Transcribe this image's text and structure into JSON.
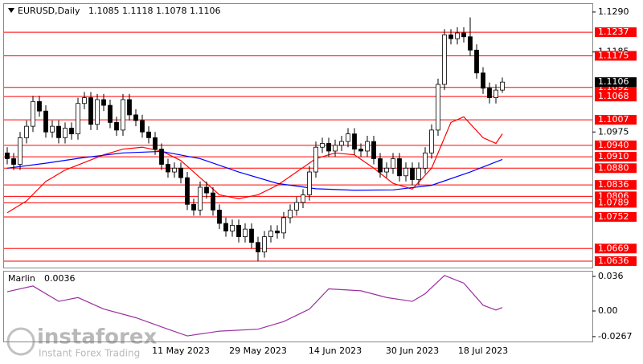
{
  "chart_data": [
    {
      "type": "candlestick",
      "title": "EURUSD,Daily",
      "categories": [
        null,
        null,
        null,
        null,
        null,
        null,
        null,
        null,
        null,
        null,
        null,
        null,
        null,
        null,
        null,
        null,
        null,
        null,
        null,
        null,
        null,
        null,
        null,
        null,
        null,
        null,
        null,
        "11 May 2023",
        null,
        null,
        null,
        null,
        null,
        null,
        null,
        null,
        null,
        null,
        null,
        "29 May 2023",
        null,
        null,
        null,
        null,
        null,
        null,
        null,
        null,
        null,
        null,
        null,
        "14 Jun 2023",
        null,
        null,
        null,
        null,
        null,
        null,
        null,
        null,
        null,
        null,
        null,
        "30 Jun 2023",
        null,
        null,
        null,
        null,
        null,
        null,
        null,
        null,
        null,
        null,
        "18 Jul 2023",
        null,
        null,
        null
      ],
      "open": [
        1.092,
        1.0905,
        1.089,
        1.096,
        1.099,
        1.1055,
        1.103,
        1.0975,
        1.099,
        1.096,
        1.0985,
        1.097,
        1.105,
        1.1065,
        1.0995,
        1.106,
        1.1045,
        1.1,
        1.098,
        1.106,
        1.102,
        1.1005,
        1.0975,
        1.096,
        1.093,
        1.089,
        1.087,
        1.088,
        1.0855,
        1.0785,
        1.077,
        1.083,
        1.0815,
        1.077,
        1.0735,
        1.0715,
        1.073,
        1.07,
        1.072,
        1.0685,
        1.066,
        1.07,
        1.0715,
        1.071,
        1.075,
        1.077,
        1.079,
        1.081,
        1.087,
        1.0935,
        1.0945,
        1.0925,
        1.094,
        1.095,
        1.097,
        1.093,
        1.0925,
        1.095,
        1.0905,
        1.087,
        1.088,
        1.0905,
        1.086,
        1.088,
        1.085,
        1.088,
        1.092,
        1.098,
        1.11,
        1.123,
        1.122,
        1.1235,
        1.1225,
        1.119,
        1.113,
        1.109,
        1.1065,
        1.1085
      ],
      "high": [
        1.0935,
        1.092,
        1.0975,
        1.1005,
        1.107,
        1.107,
        1.1045,
        1.1005,
        1.1005,
        1.1,
        1.1,
        1.1065,
        1.108,
        1.108,
        1.1075,
        1.1075,
        1.106,
        1.1015,
        1.1075,
        1.1075,
        1.1035,
        1.102,
        1.099,
        1.0975,
        1.0945,
        1.0905,
        1.0895,
        1.0895,
        1.087,
        1.08,
        1.0845,
        1.0845,
        1.083,
        1.0785,
        1.075,
        1.0745,
        1.0745,
        1.0735,
        1.0735,
        1.07,
        1.0715,
        1.073,
        1.073,
        1.0765,
        1.0785,
        1.0805,
        1.0825,
        1.0885,
        1.095,
        1.096,
        1.096,
        1.0955,
        1.0965,
        1.0985,
        1.0985,
        1.0945,
        1.0965,
        1.0965,
        1.092,
        1.0895,
        1.092,
        1.092,
        1.0895,
        1.0895,
        1.0895,
        1.0935,
        1.0995,
        1.1115,
        1.1245,
        1.1245,
        1.125,
        1.125,
        1.1276,
        1.1205,
        1.1145,
        1.1105,
        1.11,
        1.1118
      ],
      "low": [
        1.089,
        1.0875,
        1.0875,
        1.0945,
        1.0975,
        1.1015,
        1.096,
        1.096,
        1.0945,
        1.0945,
        1.0955,
        1.0955,
        1.1035,
        1.098,
        1.098,
        1.103,
        1.0985,
        1.0965,
        1.0965,
        1.1005,
        1.099,
        1.096,
        1.0945,
        1.0915,
        1.0875,
        1.0855,
        1.0855,
        1.084,
        1.077,
        1.0755,
        1.0755,
        1.08,
        1.0755,
        1.072,
        1.07,
        1.07,
        1.0685,
        1.0685,
        1.067,
        1.0636,
        1.0645,
        1.0685,
        1.0695,
        1.0695,
        1.0735,
        1.0755,
        1.0775,
        1.0795,
        1.0855,
        1.092,
        1.091,
        1.091,
        1.0925,
        1.0935,
        1.0915,
        1.091,
        1.091,
        1.089,
        1.0855,
        1.0855,
        1.0865,
        1.0845,
        1.0845,
        1.0835,
        1.0835,
        1.0865,
        1.0905,
        1.0965,
        1.1085,
        1.1205,
        1.1205,
        1.121,
        1.1175,
        1.1115,
        1.1075,
        1.105,
        1.105,
        1.1078
      ],
      "close": [
        1.0905,
        1.089,
        1.096,
        1.099,
        1.1055,
        1.103,
        1.0975,
        1.099,
        1.096,
        1.0985,
        1.097,
        1.105,
        1.1065,
        1.0995,
        1.106,
        1.1045,
        1.1,
        1.098,
        1.106,
        1.102,
        1.1005,
        1.0975,
        1.096,
        1.093,
        1.089,
        1.087,
        1.088,
        1.0855,
        1.0785,
        1.077,
        1.083,
        1.0815,
        1.077,
        1.0735,
        1.0715,
        1.073,
        1.07,
        1.072,
        1.0685,
        1.066,
        1.07,
        1.0715,
        1.071,
        1.075,
        1.077,
        1.079,
        1.081,
        1.087,
        1.0935,
        1.0945,
        1.0925,
        1.094,
        1.095,
        1.097,
        1.093,
        1.0925,
        1.095,
        1.0905,
        1.087,
        1.088,
        1.0905,
        1.086,
        1.088,
        1.085,
        1.088,
        1.092,
        1.098,
        1.11,
        1.123,
        1.122,
        1.1235,
        1.1225,
        1.119,
        1.113,
        1.109,
        1.1065,
        1.1085,
        1.1106
      ],
      "up_color": "#ffffff",
      "down_color": "#000000",
      "series": [
        {
          "color": "#ff0000",
          "x": [
            0,
            3,
            6,
            9,
            12,
            15,
            18,
            21,
            24,
            27,
            30,
            33,
            36,
            39,
            42,
            45,
            48,
            51,
            54,
            57,
            60,
            63,
            66,
            69,
            71,
            74,
            76,
            77
          ],
          "values": [
            1.0763,
            1.0794,
            1.0845,
            1.0875,
            1.0895,
            1.0915,
            1.093,
            1.0935,
            1.0925,
            1.09,
            1.0855,
            1.081,
            1.08,
            1.081,
            1.0835,
            1.087,
            1.0905,
            1.092,
            1.0915,
            1.088,
            1.084,
            1.0825,
            1.088,
            1.1,
            1.1015,
            1.096,
            1.0945,
            1.097
          ]
        },
        {
          "color": "#0000ff",
          "x": [
            0,
            6,
            12,
            18,
            24,
            30,
            36,
            42,
            48,
            54,
            60,
            66,
            72,
            77
          ],
          "values": [
            1.088,
            1.0893,
            1.0908,
            1.092,
            1.0924,
            1.0905,
            1.087,
            1.084,
            1.0826,
            1.0822,
            1.0823,
            1.0835,
            1.087,
            1.0903
          ]
        }
      ],
      "ylim": [
        1.0619,
        1.1311
      ],
      "yticks": [
        {
          "value": 1.129,
          "label": "1.1290"
        },
        1.1185,
        1.0975
      ],
      "levels": [
        1.1237,
        1.1175,
        1.1092,
        1.1068,
        1.1007,
        {
          "value": 1.094,
          "label": "1.0940"
        },
        {
          "value": 1.091,
          "label": "1.0910"
        },
        {
          "value": 1.088,
          "label": "1.0880"
        },
        1.0836,
        1.0806,
        1.0789,
        1.0752,
        1.0669,
        1.0636
      ],
      "level_color": "#ff0000"
    },
    {
      "type": "line",
      "title": "Marlin",
      "color": "#9b30a0",
      "x": [
        0,
        4,
        8,
        11,
        15,
        20,
        25,
        28,
        33,
        39,
        43,
        47,
        50,
        55,
        59,
        63,
        65,
        68,
        71,
        74,
        76,
        77
      ],
      "values": [
        0.02,
        0.026,
        0.01,
        0.014,
        0.002,
        -0.007,
        -0.019,
        -0.026,
        -0.021,
        -0.019,
        -0.011,
        0.002,
        0.023,
        0.021,
        0.014,
        0.01,
        0.018,
        0.037,
        0.029,
        0.006,
        0.001,
        0.0036
      ],
      "ylim": [
        -0.0318,
        0.041
      ],
      "yticks": [
        0.036,
        {
          "value": 0,
          "label": "0.00"
        },
        -0.0267
      ]
    }
  ],
  "watermark": {
    "brand": "instaforex",
    "tagline": "Instant Forex Trading"
  }
}
